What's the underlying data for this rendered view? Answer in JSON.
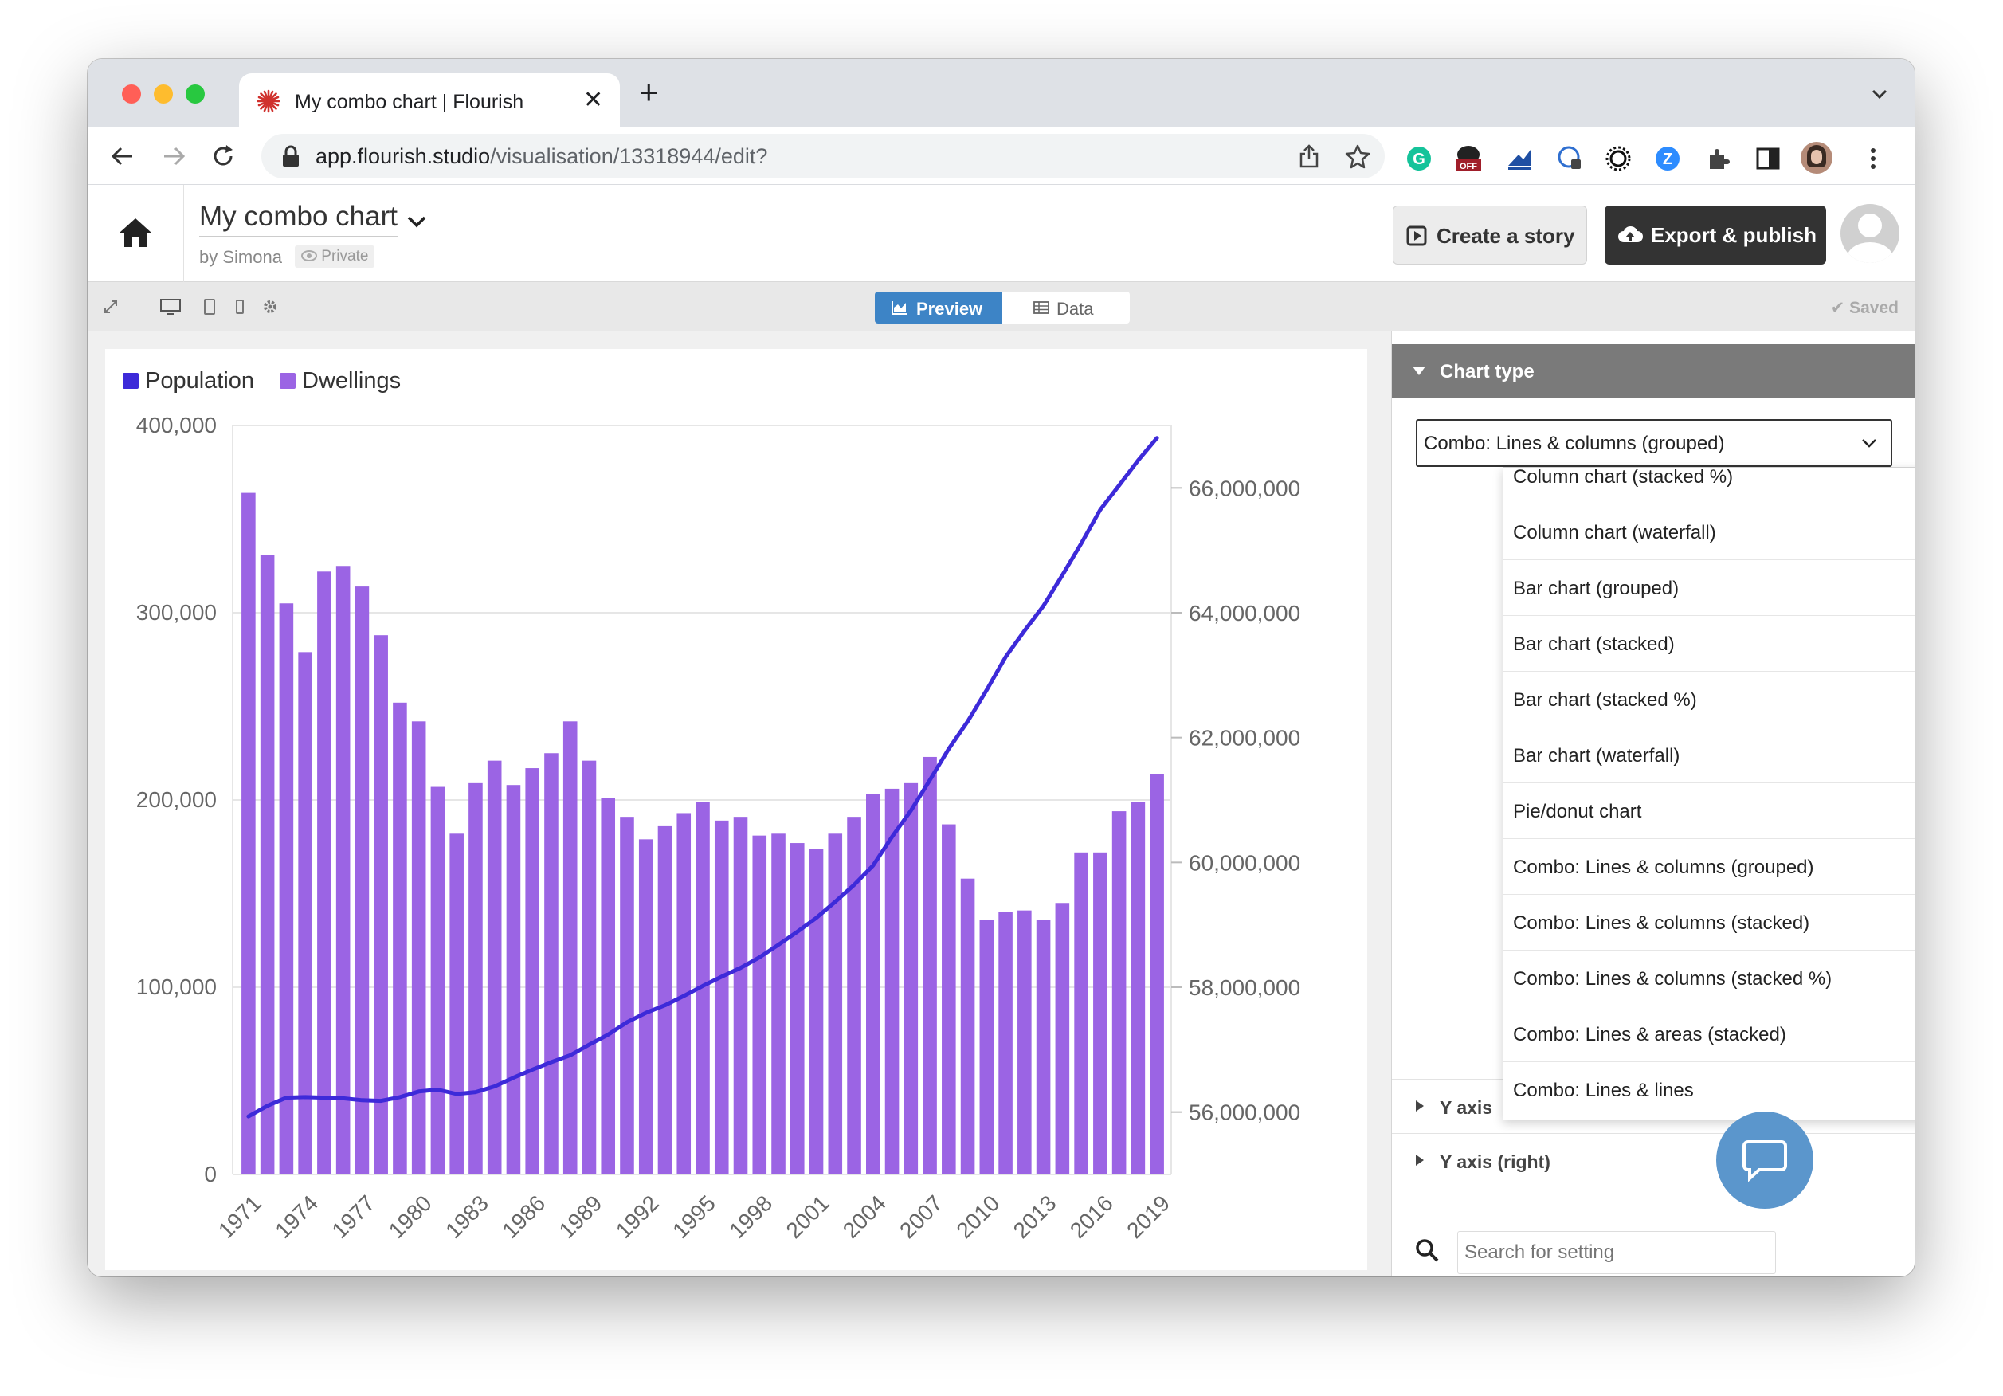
{
  "browser": {
    "tab_title": "My combo chart | Flourish",
    "new_tab": "+",
    "url_host": "app.flourish.studio",
    "url_path": "/visualisation/13318944/edit?",
    "ext_badge": "OFF"
  },
  "header": {
    "title": "My combo chart",
    "byline": "by Simona",
    "privacy": "Private",
    "create_story": "Create a story",
    "export_publish": "Export & publish"
  },
  "editor": {
    "preview_tab": "Preview",
    "data_tab": "Data",
    "status": "Saved"
  },
  "panel": {
    "section_title": "Chart type",
    "selected_type": "Combo: Lines & columns (grouped)",
    "options": [
      "Column chart (stacked %)",
      "Column chart (waterfall)",
      "Bar chart (grouped)",
      "Bar chart (stacked)",
      "Bar chart (stacked %)",
      "Bar chart (waterfall)",
      "Pie/donut chart",
      "Combo: Lines & columns (grouped)",
      "Combo: Lines & columns (stacked)",
      "Combo: Lines & columns (stacked %)",
      "Combo: Lines & areas (stacked)",
      "Combo: Lines & lines"
    ],
    "rows": [
      "Y axis",
      "Y axis (right)"
    ],
    "search_placeholder": "Search for setting"
  },
  "colors": {
    "population": "#3d2ad9",
    "dwellings": "#9b64e4",
    "accent": "#3d84c6"
  },
  "chart_data": {
    "type": "bar",
    "combo": "columns + line (dual axis)",
    "legend": [
      "Population",
      "Dwellings"
    ],
    "legend_position": "top-left",
    "grid": true,
    "years": [
      1971,
      1972,
      1973,
      1974,
      1975,
      1976,
      1977,
      1978,
      1979,
      1980,
      1981,
      1982,
      1983,
      1984,
      1985,
      1986,
      1987,
      1988,
      1989,
      1990,
      1991,
      1992,
      1993,
      1994,
      1995,
      1996,
      1997,
      1998,
      1999,
      2000,
      2001,
      2002,
      2003,
      2004,
      2005,
      2006,
      2007,
      2008,
      2009,
      2010,
      2011,
      2012,
      2013,
      2014,
      2015,
      2016,
      2017,
      2018,
      2019
    ],
    "x_tick_labels": [
      "1971",
      "1974",
      "1977",
      "1980",
      "1983",
      "1986",
      "1989",
      "1992",
      "1995",
      "1998",
      "2001",
      "2004",
      "2007",
      "2010",
      "2013",
      "2016",
      "2019"
    ],
    "series": [
      {
        "name": "Dwellings",
        "kind": "column",
        "axis": "left",
        "values": [
          364000,
          331000,
          305000,
          279000,
          322000,
          325000,
          314000,
          288000,
          252000,
          242000,
          207000,
          182000,
          209000,
          221000,
          208000,
          217000,
          225000,
          242000,
          221000,
          201000,
          191000,
          179000,
          186000,
          193000,
          199000,
          189000,
          191000,
          181000,
          182000,
          177000,
          174000,
          182000,
          191000,
          203000,
          206000,
          209000,
          223000,
          187000,
          158000,
          136000,
          140000,
          141000,
          136000,
          145000,
          172000,
          172000,
          194000,
          199000,
          214000
        ]
      },
      {
        "name": "Population",
        "kind": "line",
        "axis": "right",
        "values": [
          55930000,
          56100000,
          56230000,
          56240000,
          56230000,
          56220000,
          56190000,
          56180000,
          56240000,
          56330000,
          56360000,
          56290000,
          56320000,
          56410000,
          56550000,
          56680000,
          56800000,
          56910000,
          57080000,
          57240000,
          57440000,
          57590000,
          57710000,
          57860000,
          58020000,
          58170000,
          58310000,
          58480000,
          58680000,
          58890000,
          59110000,
          59370000,
          59640000,
          59950000,
          60410000,
          60830000,
          61320000,
          61820000,
          62260000,
          62760000,
          63290000,
          63710000,
          64110000,
          64600000,
          65110000,
          65650000,
          66040000,
          66440000,
          66800000
        ]
      }
    ],
    "y_left": {
      "range": [
        0,
        400000
      ],
      "ticks": [
        "0",
        "100,000",
        "200,000",
        "300,000",
        "400,000"
      ]
    },
    "y_right": {
      "range": [
        55000000,
        67000000
      ],
      "ticks": [
        "56,000,000",
        "58,000,000",
        "60,000,000",
        "62,000,000",
        "64,000,000",
        "66,000,000"
      ]
    }
  }
}
